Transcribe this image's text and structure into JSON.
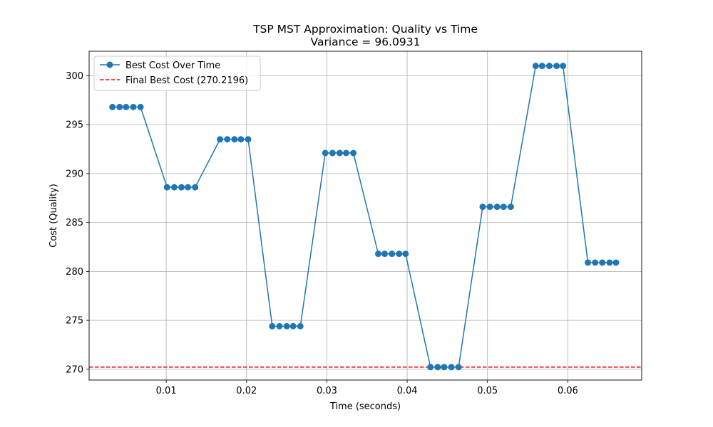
{
  "chart_data": {
    "type": "line",
    "title": "TSP MST Approximation: Quality vs Time",
    "subtitle": "Variance = 96.0931",
    "xlabel": "Time (seconds)",
    "ylabel": "Cost (Quality)",
    "xlim": [
      0.0004,
      0.0692
    ],
    "ylim": [
      268.9,
      302.5
    ],
    "xticks": [
      0.01,
      0.02,
      0.03,
      0.04,
      0.05,
      0.06
    ],
    "xtick_labels": [
      "0.01",
      "0.02",
      "0.03",
      "0.04",
      "0.05",
      "0.06"
    ],
    "yticks": [
      270,
      275,
      280,
      285,
      290,
      295,
      300
    ],
    "ytick_labels": [
      "270",
      "275",
      "280",
      "285",
      "290",
      "295",
      "300"
    ],
    "grid": true,
    "legend_position": "top-left",
    "series": [
      {
        "name": "Best Cost Over Time",
        "color": "#1f77b4",
        "marker": "circle",
        "x": [
          0.0033,
          0.0042,
          0.005,
          0.0059,
          0.0068,
          0.0101,
          0.011,
          0.0119,
          0.0127,
          0.0136,
          0.0167,
          0.0176,
          0.0185,
          0.0193,
          0.0202,
          0.0232,
          0.0241,
          0.025,
          0.0258,
          0.0267,
          0.0298,
          0.0307,
          0.0316,
          0.0324,
          0.0333,
          0.0364,
          0.0372,
          0.0381,
          0.039,
          0.0398,
          0.0429,
          0.0438,
          0.0446,
          0.0455,
          0.0464,
          0.0494,
          0.0503,
          0.0512,
          0.052,
          0.0529,
          0.056,
          0.0568,
          0.0577,
          0.0586,
          0.0594,
          0.0625,
          0.0634,
          0.0643,
          0.0652,
          0.066
        ],
        "y": [
          296.8,
          296.8,
          296.8,
          296.8,
          296.8,
          288.6,
          288.6,
          288.6,
          288.6,
          288.6,
          293.5,
          293.5,
          293.5,
          293.5,
          293.5,
          274.4,
          274.4,
          274.4,
          274.4,
          274.4,
          292.1,
          292.1,
          292.1,
          292.1,
          292.1,
          281.8,
          281.8,
          281.8,
          281.8,
          281.8,
          270.2196,
          270.2196,
          270.2196,
          270.2196,
          270.2196,
          286.6,
          286.6,
          286.6,
          286.6,
          286.6,
          301.0,
          301.0,
          301.0,
          301.0,
          301.0,
          280.9,
          280.9,
          280.9,
          280.9,
          280.9
        ]
      },
      {
        "name": "Final Best Cost (270.2196)",
        "color": "#e8161b",
        "style": "dashed",
        "hline": 270.2196
      }
    ]
  }
}
